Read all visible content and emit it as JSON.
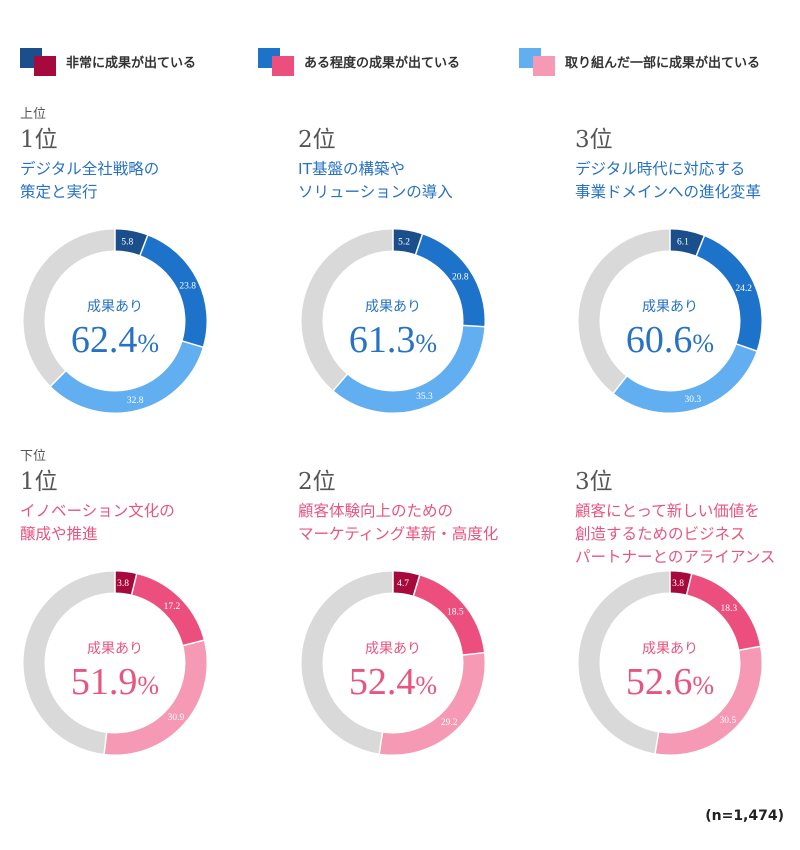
{
  "legend": [
    {
      "label": "非常に成果が出ている",
      "color_a": "#1a4f8b",
      "color_b": "#a60a3c"
    },
    {
      "label": "ある程度の成果が出ている",
      "color_a": "#1d72c9",
      "color_b": "#ec4f7d"
    },
    {
      "label": "取り組んだ一部に成果が出ている",
      "color_a": "#61aef0",
      "color_b": "#f599b5"
    }
  ],
  "groups": {
    "upper": "上位",
    "lower": "下位"
  },
  "center_label": "成果あり",
  "percent_sign": "%",
  "note": "(n=1,474)",
  "colors": {
    "remainder": "#d9d9d9",
    "blue_segments": [
      "#1a4f8b",
      "#1d72c9",
      "#61aef0"
    ],
    "pink_segments": [
      "#a60a3c",
      "#ec4f7d",
      "#f599b5"
    ]
  },
  "chart_data": [
    {
      "type": "pie",
      "rank": "1位",
      "title_lines": [
        "デジタル全社戦略の",
        "策定と実行"
      ],
      "theme": "blue",
      "labels": [
        "非常に成果が出ている",
        "ある程度の成果が出ている",
        "取り組んだ一部に成果が出ている"
      ],
      "values": [
        5.8,
        23.8,
        32.8
      ],
      "total_text": "62.4"
    },
    {
      "type": "pie",
      "rank": "2位",
      "title_lines": [
        "IT基盤の構築や",
        "ソリューションの導入"
      ],
      "theme": "blue",
      "labels": [
        "非常に成果が出ている",
        "ある程度の成果が出ている",
        "取り組んだ一部に成果が出ている"
      ],
      "values": [
        5.2,
        20.8,
        35.3
      ],
      "total_text": "61.3"
    },
    {
      "type": "pie",
      "rank": "3位",
      "title_lines": [
        "デジタル時代に対応する",
        "事業ドメインへの進化変革"
      ],
      "theme": "blue",
      "labels": [
        "非常に成果が出ている",
        "ある程度の成果が出ている",
        "取り組んだ一部に成果が出ている"
      ],
      "values": [
        6.1,
        24.2,
        30.3
      ],
      "total_text": "60.6"
    },
    {
      "type": "pie",
      "rank": "1位",
      "title_lines": [
        "イノベーション文化の",
        "醸成や推進"
      ],
      "theme": "pink",
      "labels": [
        "非常に成果が出ている",
        "ある程度の成果が出ている",
        "取り組んだ一部に成果が出ている"
      ],
      "values": [
        3.8,
        17.2,
        30.9
      ],
      "total_text": "51.9"
    },
    {
      "type": "pie",
      "rank": "2位",
      "title_lines": [
        "顧客体験向上のための",
        "マーケティング革新・高度化"
      ],
      "theme": "pink",
      "labels": [
        "非常に成果が出ている",
        "ある程度の成果が出ている",
        "取り組んだ一部に成果が出ている"
      ],
      "values": [
        4.7,
        18.5,
        29.2
      ],
      "total_text": "52.4"
    },
    {
      "type": "pie",
      "rank": "3位",
      "title_lines": [
        "顧客にとって新しい価値を",
        "創造するためのビジネス",
        "パートナーとのアライアンス"
      ],
      "theme": "pink",
      "labels": [
        "非常に成果が出ている",
        "ある程度の成果が出ている",
        "取り組んだ一部に成果が出ている"
      ],
      "values": [
        3.8,
        18.3,
        30.5
      ],
      "total_text": "52.6"
    }
  ]
}
